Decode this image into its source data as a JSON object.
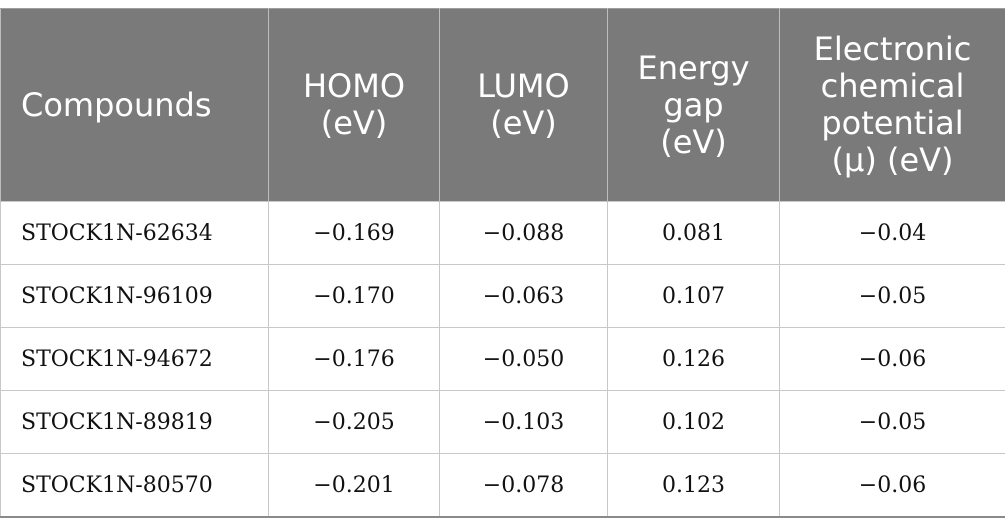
{
  "table": {
    "headers": [
      [
        "Compounds"
      ],
      [
        "HOMO",
        "(eV)"
      ],
      [
        "LUMO",
        "(eV)"
      ],
      [
        "Energy",
        "gap",
        "(eV)"
      ],
      [
        "Electronic",
        "chemical",
        "potential",
        "(μ) (eV)"
      ]
    ],
    "rows": [
      [
        "STOCK1N-62634",
        "−0.169",
        "−0.088",
        "0.081",
        "−0.04"
      ],
      [
        "STOCK1N-96109",
        "−0.170",
        "−0.063",
        "0.107",
        "−0.05"
      ],
      [
        "STOCK1N-94672",
        "−0.176",
        "−0.050",
        "0.126",
        "−0.06"
      ],
      [
        "STOCK1N-89819",
        "−0.205",
        "−0.103",
        "0.102",
        "−0.05"
      ],
      [
        "STOCK1N-80570",
        "−0.201",
        "−0.078",
        "0.123",
        "−0.06"
      ]
    ]
  },
  "colors": {
    "header_bg": "#7a7a7a",
    "header_text": "#ffffff",
    "grid": "#c8c8c8"
  }
}
